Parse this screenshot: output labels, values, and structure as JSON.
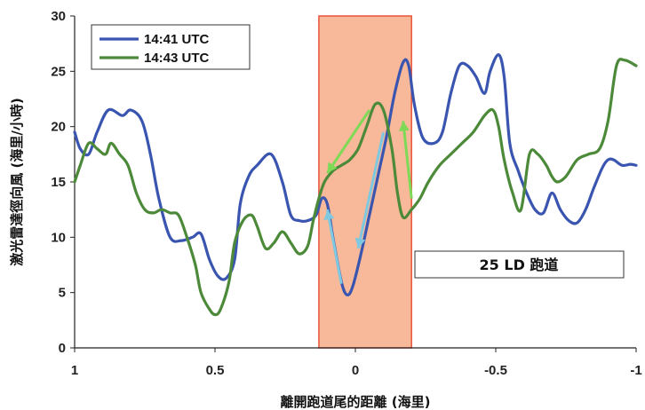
{
  "chart_data": {
    "type": "line",
    "xlabel": "離開跑道尾的距離 (海里)",
    "ylabel": "激光雷達徑向風 (海里/小時)",
    "xlim": [
      1,
      -1
    ],
    "ylim": [
      0,
      30
    ],
    "x_ticks": [
      1,
      0.5,
      0,
      -0.5,
      -1
    ],
    "x_tick_labels": [
      "1",
      "0.5",
      "0",
      "-0.5",
      "-1"
    ],
    "y_ticks": [
      0,
      5,
      10,
      15,
      20,
      25,
      30
    ],
    "y_tick_labels": [
      "0",
      "5",
      "10",
      "15",
      "20",
      "25",
      "30"
    ],
    "grid": false,
    "legend_position": "top-left",
    "highlight_region": {
      "x_from": 0.13,
      "x_to": -0.2,
      "color": "#f8b99a"
    },
    "annotation": "25 LD 跑道",
    "series": [
      {
        "name": "14:41 UTC",
        "color": "#3a55b0",
        "x": [
          1,
          0.98,
          0.95,
          0.92,
          0.88,
          0.83,
          0.8,
          0.76,
          0.73,
          0.7,
          0.66,
          0.62,
          0.58,
          0.55,
          0.52,
          0.49,
          0.46,
          0.43,
          0.41,
          0.38,
          0.35,
          0.3,
          0.26,
          0.23,
          0.2,
          0.17,
          0.14,
          0.12,
          0.1,
          0.08,
          0.05,
          0.03,
          0.01,
          -0.02,
          -0.05,
          -0.08,
          -0.11,
          -0.14,
          -0.17,
          -0.19,
          -0.21,
          -0.24,
          -0.28,
          -0.31,
          -0.34,
          -0.37,
          -0.4,
          -0.43,
          -0.46,
          -0.48,
          -0.51,
          -0.53,
          -0.55,
          -0.58,
          -0.61,
          -0.64,
          -0.67,
          -0.7,
          -0.73,
          -0.76,
          -0.79,
          -0.82,
          -0.85,
          -0.88,
          -0.9,
          -0.92,
          -0.95,
          -0.98,
          -1.0
        ],
        "y": [
          19.5,
          18.0,
          17.5,
          19.5,
          21.5,
          21.0,
          21.5,
          20.5,
          17.5,
          13.5,
          10.0,
          9.7,
          10.0,
          10.3,
          8.0,
          6.5,
          6.3,
          8.0,
          13.0,
          15.5,
          16.5,
          17.5,
          15.0,
          12.0,
          11.5,
          11.5,
          12.0,
          13.5,
          13.0,
          10.0,
          6.0,
          4.8,
          5.5,
          8.5,
          12.0,
          15.5,
          19.0,
          23.0,
          25.8,
          25.5,
          22.0,
          19.0,
          18.5,
          19.5,
          23.0,
          25.5,
          25.5,
          24.5,
          23.0,
          25.0,
          26.5,
          24.5,
          18.5,
          16.0,
          14.0,
          12.5,
          12.2,
          14.0,
          12.5,
          11.5,
          11.3,
          12.5,
          14.5,
          16.3,
          17.0,
          17.0,
          16.5,
          16.6,
          16.5
        ]
      },
      {
        "name": "14:43 UTC",
        "color": "#4c8a3a",
        "x": [
          1,
          0.98,
          0.95,
          0.92,
          0.89,
          0.87,
          0.84,
          0.81,
          0.78,
          0.75,
          0.72,
          0.69,
          0.66,
          0.63,
          0.6,
          0.57,
          0.55,
          0.52,
          0.5,
          0.48,
          0.45,
          0.43,
          0.4,
          0.37,
          0.35,
          0.32,
          0.29,
          0.26,
          0.23,
          0.2,
          0.17,
          0.15,
          0.13,
          0.11,
          0.08,
          0.05,
          0.02,
          -0.01,
          -0.04,
          -0.07,
          -0.1,
          -0.13,
          -0.15,
          -0.17,
          -0.2,
          -0.23,
          -0.26,
          -0.3,
          -0.34,
          -0.38,
          -0.42,
          -0.46,
          -0.49,
          -0.51,
          -0.53,
          -0.56,
          -0.59,
          -0.62,
          -0.65,
          -0.68,
          -0.7,
          -0.72,
          -0.75,
          -0.79,
          -0.83,
          -0.87,
          -0.9,
          -0.93,
          -0.96,
          -1.0
        ],
        "y": [
          15.0,
          16.5,
          18.5,
          18.0,
          17.5,
          18.5,
          17.5,
          16.5,
          14.0,
          12.5,
          12.2,
          12.5,
          12.2,
          12.0,
          10.0,
          7.5,
          5.0,
          3.5,
          3.0,
          3.5,
          6.0,
          9.5,
          11.5,
          12.0,
          11.0,
          9.0,
          9.5,
          10.5,
          9.5,
          8.5,
          9.2,
          11.5,
          13.5,
          15.0,
          16.0,
          16.5,
          17.0,
          18.0,
          20.0,
          22.0,
          21.5,
          18.0,
          14.0,
          11.8,
          12.5,
          13.5,
          15.0,
          16.5,
          17.5,
          18.5,
          19.5,
          21.0,
          21.5,
          20.0,
          17.0,
          14.0,
          12.5,
          17.5,
          17.5,
          16.5,
          15.5,
          15.0,
          15.5,
          17.0,
          17.5,
          18.0,
          20.5,
          25.5,
          26.0,
          25.5
        ]
      }
    ],
    "arrows": [
      {
        "color": "#7ed957",
        "from": [
          -0.05,
          21.5
        ],
        "to": [
          0.1,
          15.8
        ]
      },
      {
        "color": "#7ed957",
        "from": [
          -0.2,
          13.5
        ],
        "to": [
          -0.17,
          20.5
        ]
      },
      {
        "color": "#7ec8e0",
        "from": [
          -0.1,
          19.5
        ],
        "to": [
          -0.01,
          9.0
        ]
      },
      {
        "color": "#7ec8e0",
        "from": [
          0.05,
          5.8
        ],
        "to": [
          0.1,
          12.5
        ]
      }
    ]
  },
  "legend": {
    "items": [
      "14:41 UTC",
      "14:43 UTC"
    ]
  }
}
